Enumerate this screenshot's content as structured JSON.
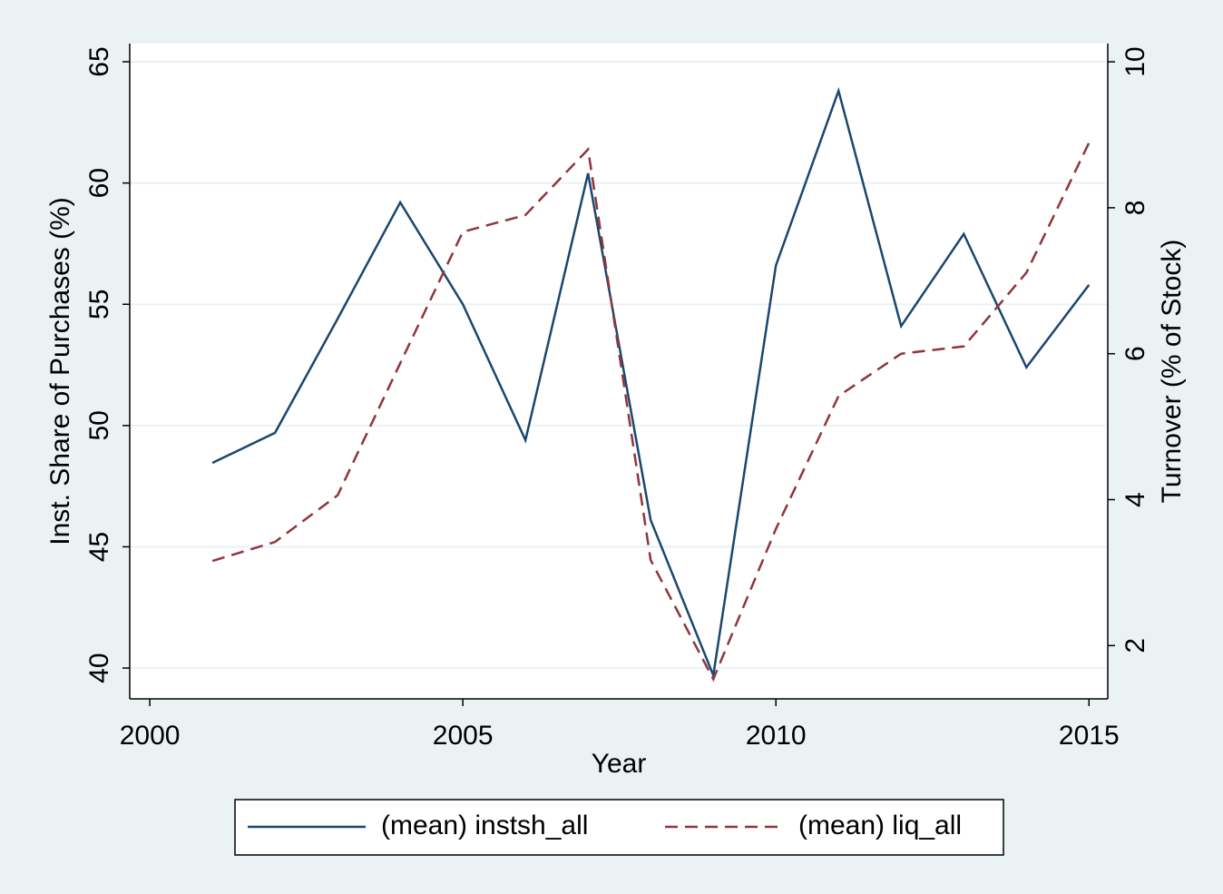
{
  "chart_data": {
    "type": "line",
    "x_label": "Year",
    "y_label": "Inst. Share of Purchases (%)",
    "y2_label": "Turnover (% of Stock)",
    "x": [
      2001,
      2002,
      2003,
      2004,
      2005,
      2006,
      2007,
      2008,
      2009,
      2010,
      2011,
      2012,
      2013,
      2014,
      2015
    ],
    "series": [
      {
        "name": "(mean) instsh_all",
        "color": "#1a476f",
        "dash": false,
        "values": [
          48.46,
          49.7,
          54.4,
          59.2,
          55.0,
          49.4,
          60.4,
          46.1,
          39.7,
          56.6,
          63.8,
          54.1,
          57.9,
          52.4,
          55.8
        ]
      },
      {
        "name": "(mean) liq_all",
        "color": "#90353b",
        "dash": true,
        "axis": "y2",
        "values": [
          3.16,
          3.42,
          4.06,
          5.87,
          7.67,
          7.9,
          8.8,
          3.17,
          1.54,
          3.6,
          5.42,
          6.0,
          6.1,
          7.11,
          8.89
        ]
      }
    ],
    "xlim": [
      1999.68,
      2015.3
    ],
    "xticks": [
      2000,
      2005,
      2010,
      2015
    ],
    "ylim": [
      38.73,
      65.75
    ],
    "yticks": [
      40,
      45,
      50,
      55,
      60,
      65
    ],
    "y2lim": [
      1.27,
      10.25
    ],
    "y2ticks": [
      2,
      4,
      6,
      8,
      10
    ],
    "grid": true
  }
}
